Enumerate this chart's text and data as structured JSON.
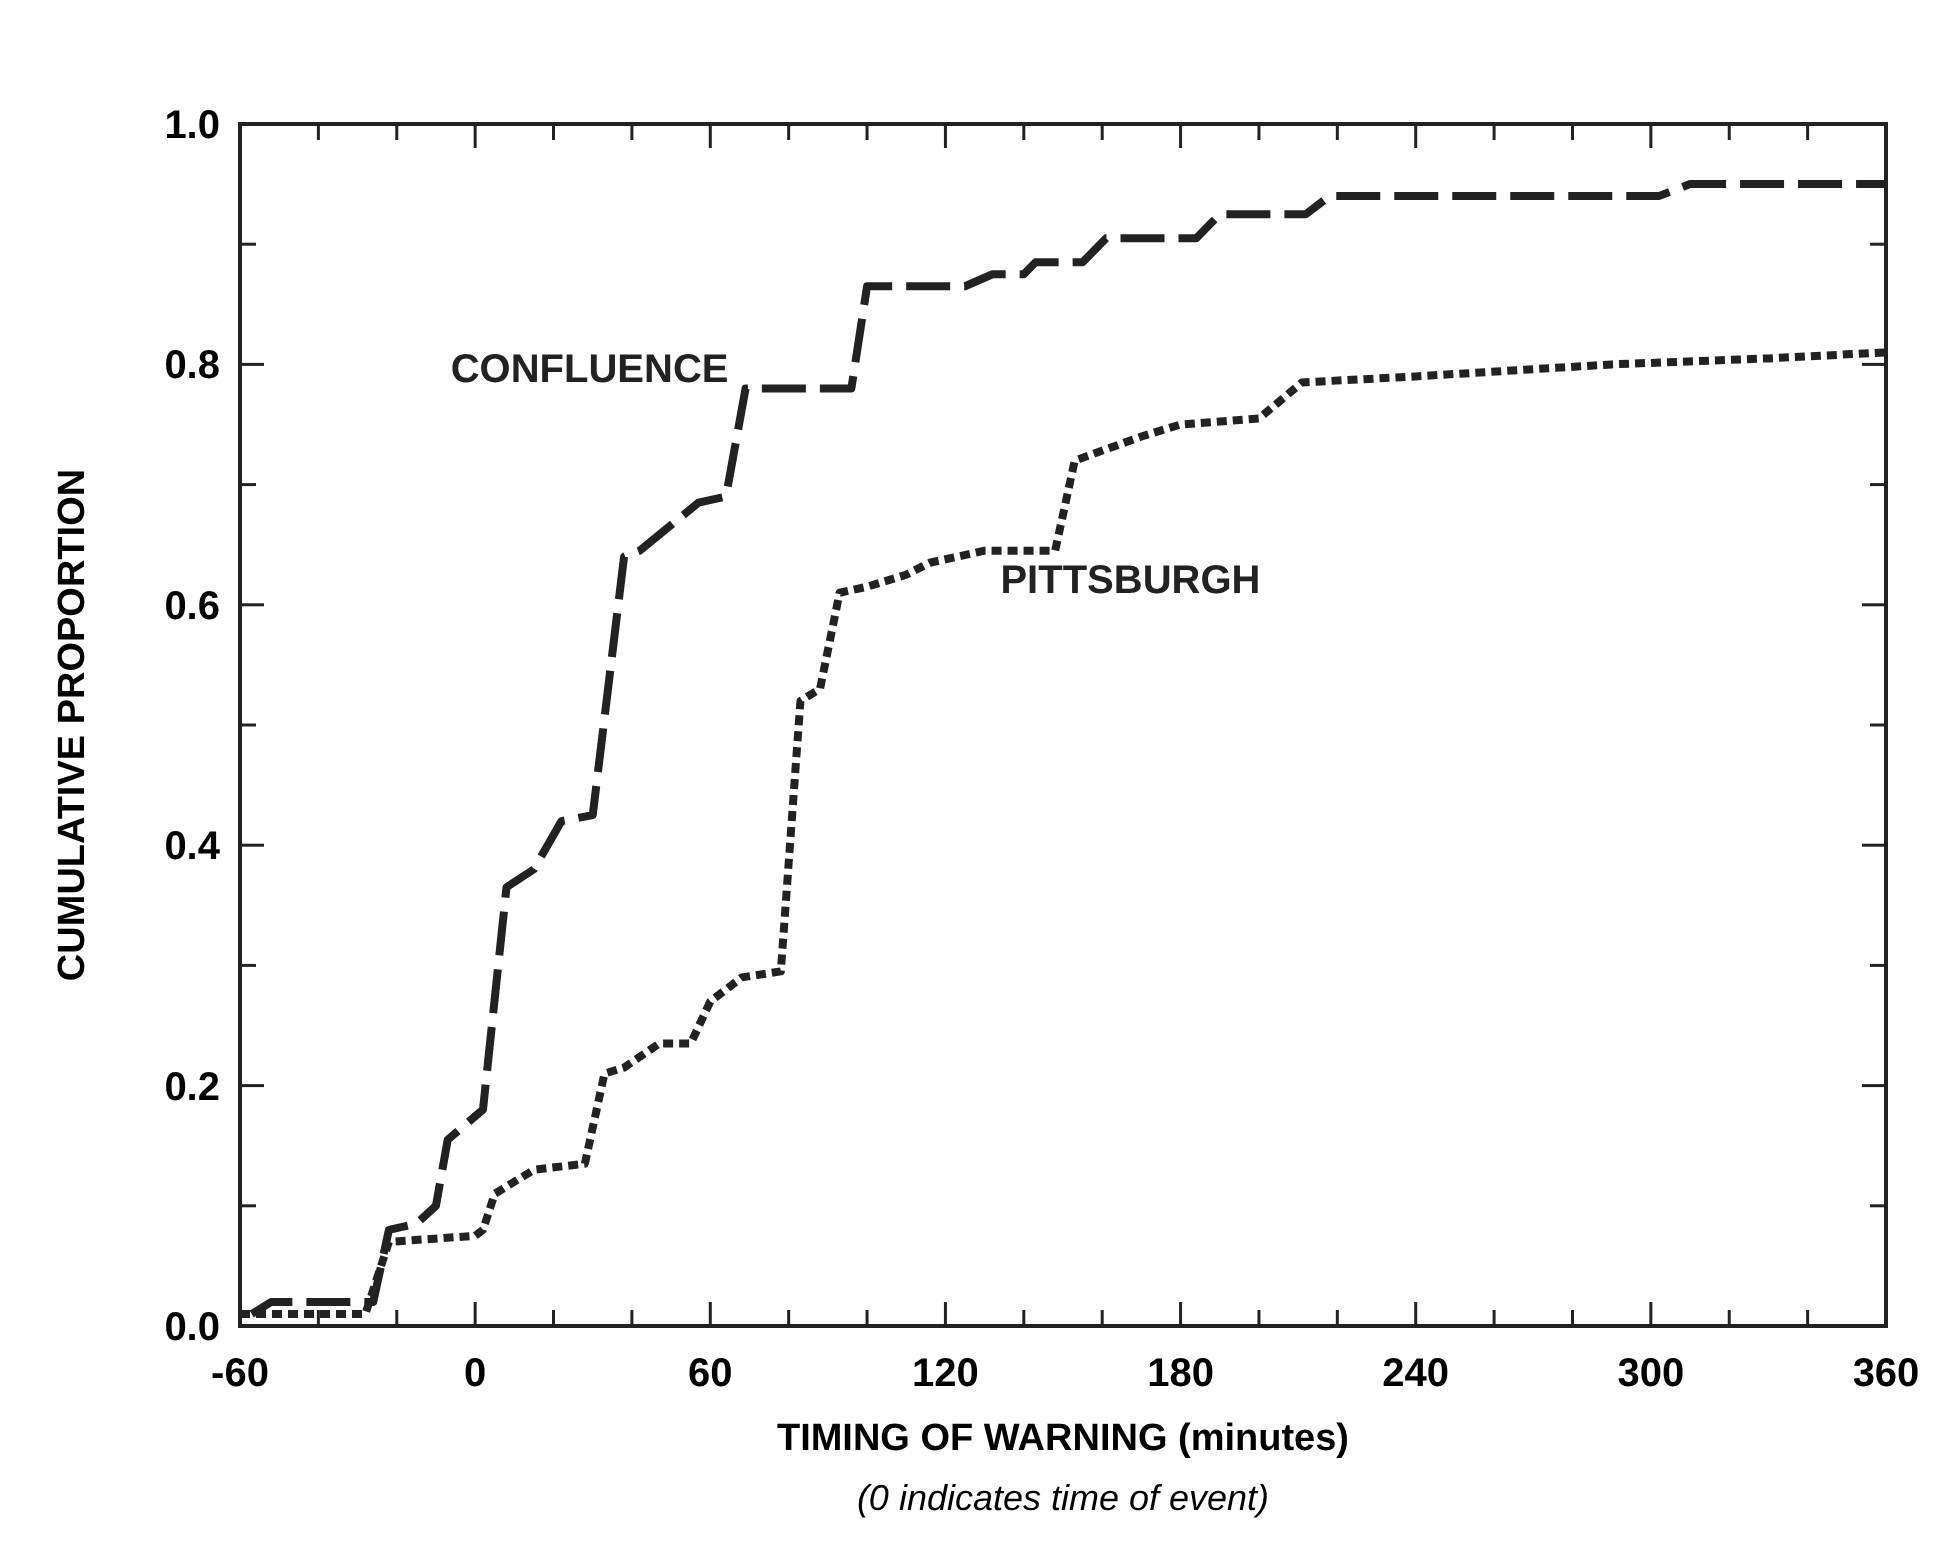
{
  "chart_data": {
    "type": "line",
    "xlabel": "TIMING OF WARNING (minutes)",
    "ylabel": "CUMULATIVE PROPORTION",
    "annotations": [
      "(0 indicates time of event)"
    ],
    "xlim": [
      -60,
      360
    ],
    "ylim": [
      0,
      1
    ],
    "xticks": [
      -60,
      {
        "value": -40,
        "label": null
      },
      {
        "value": -20,
        "label": null
      },
      0,
      {
        "value": 20,
        "label": null
      },
      {
        "value": 40,
        "label": null
      },
      60,
      {
        "value": 80,
        "label": null
      },
      {
        "value": 100,
        "label": null
      },
      120,
      {
        "value": 140,
        "label": null
      },
      {
        "value": 160,
        "label": null
      },
      180,
      {
        "value": 200,
        "label": null
      },
      {
        "value": 220,
        "label": null
      },
      240,
      {
        "value": 260,
        "label": null
      },
      {
        "value": 280,
        "label": null
      },
      300,
      {
        "value": 320,
        "label": null
      },
      {
        "value": 340,
        "label": null
      },
      360
    ],
    "yticks": [
      {
        "value": 0,
        "label": "0.0"
      },
      {
        "value": 0.1,
        "label": null
      },
      0.2,
      {
        "value": 0.3,
        "label": null
      },
      0.4,
      {
        "value": 0.5,
        "label": null
      },
      0.6,
      {
        "value": 0.7,
        "label": null
      },
      0.8,
      {
        "value": 0.9,
        "label": null
      },
      {
        "value": 1,
        "label": "1.0"
      }
    ],
    "grid": false,
    "marker": "none",
    "series": [
      {
        "name": "CONFLUENCE",
        "color": "#222222",
        "line_style": "dashed",
        "x": [
          -57,
          -52,
          -26,
          -22,
          -15,
          -10,
          -7,
          2,
          8,
          15,
          22,
          30,
          38,
          42,
          57,
          64,
          69,
          96,
          100,
          125,
          132,
          140,
          143,
          155,
          161,
          184,
          190,
          212,
          218,
          302,
          310,
          360
        ],
        "values": [
          0.01,
          0.02,
          0.02,
          0.08,
          0.085,
          0.1,
          0.155,
          0.18,
          0.365,
          0.38,
          0.42,
          0.425,
          0.64,
          0.645,
          0.685,
          0.69,
          0.78,
          0.78,
          0.865,
          0.865,
          0.875,
          0.875,
          0.885,
          0.885,
          0.905,
          0.905,
          0.925,
          0.925,
          0.94,
          0.94,
          0.95,
          0.95
        ]
      },
      {
        "name": "PITTSBURGH",
        "color": "#222222",
        "line_style": "dotted",
        "x": [
          -60,
          -28,
          -22,
          0,
          2,
          5,
          15,
          28,
          33,
          38,
          47,
          55,
          60,
          68,
          78,
          83,
          88,
          93,
          100,
          110,
          116,
          130,
          148,
          153,
          170,
          180,
          200,
          211,
          240,
          290,
          330,
          360
        ],
        "values": [
          0.01,
          0.01,
          0.07,
          0.075,
          0.08,
          0.11,
          0.13,
          0.135,
          0.21,
          0.215,
          0.235,
          0.235,
          0.27,
          0.29,
          0.295,
          0.52,
          0.53,
          0.61,
          0.615,
          0.625,
          0.635,
          0.645,
          0.645,
          0.72,
          0.74,
          0.75,
          0.755,
          0.785,
          0.79,
          0.8,
          0.805,
          0.81
        ]
      }
    ]
  }
}
